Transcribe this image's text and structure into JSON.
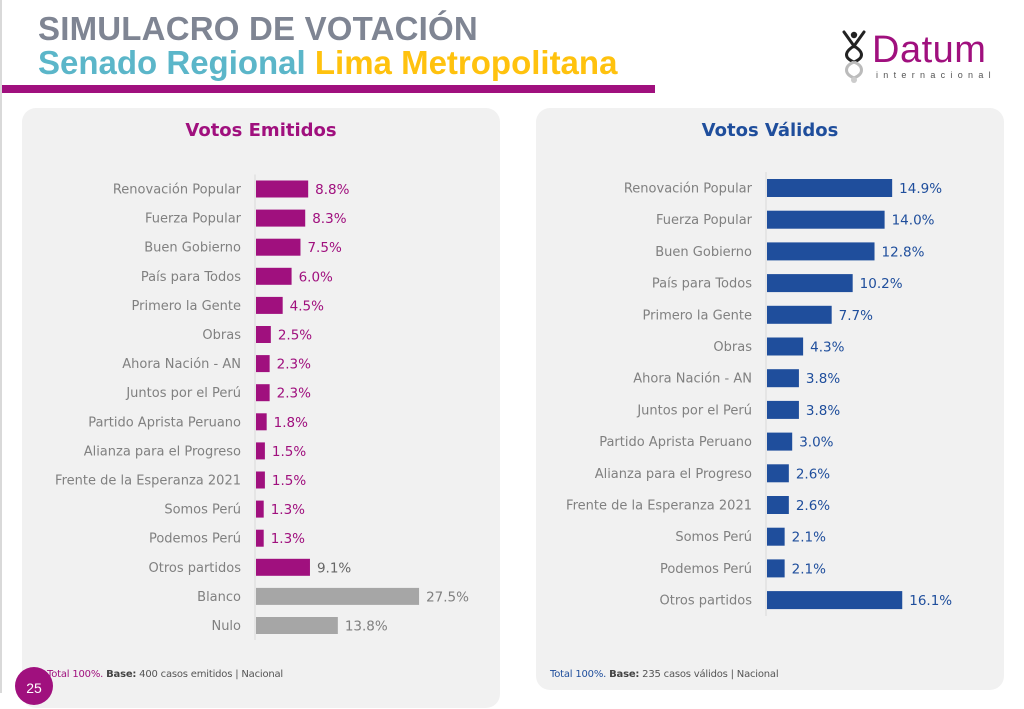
{
  "header": {
    "title_line1": "SIMULACRO DE VOTACIÓN",
    "title_line2_part1": "Senado Regional",
    "title_line2_part2": "Lima Metropolitana",
    "colors": {
      "title1": "#7f8593",
      "part1": "#5bb6c9",
      "part2": "#ffc20e",
      "rule": "#a0107e"
    }
  },
  "logo": {
    "name": "Datum",
    "subtitle": "internacional",
    "icon": "datum-figure-icon"
  },
  "page_number": "25",
  "chart_data": [
    {
      "type": "bar",
      "orientation": "horizontal",
      "title": "Votos Emitidos",
      "xlabel": "",
      "ylabel": "",
      "grid": false,
      "xlim": [
        0,
        30
      ],
      "categories": [
        "Renovación Popular",
        "Fuerza Popular",
        "Buen Gobierno",
        "País para Todos",
        "Primero la Gente",
        "Obras",
        "Ahora Nación - AN",
        "Juntos por el Perú",
        "Partido Aprista Peruano",
        "Alianza para el Progreso",
        "Frente de la Esperanza 2021",
        "Somos Perú",
        "Podemos Perú",
        "Otros partidos",
        "Blanco",
        "Nulo"
      ],
      "values": [
        8.8,
        8.3,
        7.5,
        6.0,
        4.5,
        2.5,
        2.3,
        2.3,
        1.8,
        1.5,
        1.5,
        1.3,
        1.3,
        9.1,
        27.5,
        13.8
      ],
      "value_labels": [
        "8.8%",
        "8.3%",
        "7.5%",
        "6.0%",
        "4.5%",
        "2.5%",
        "2.3%",
        "2.3%",
        "1.8%",
        "1.5%",
        "1.5%",
        "1.3%",
        "1.3%",
        "9.1%",
        "27.5%",
        "13.8%"
      ],
      "bar_colors": [
        "#a0107e",
        "#a0107e",
        "#a0107e",
        "#a0107e",
        "#a0107e",
        "#a0107e",
        "#a0107e",
        "#a0107e",
        "#a0107e",
        "#a0107e",
        "#a0107e",
        "#a0107e",
        "#a0107e",
        "#a0107e",
        "#a6a6a6",
        "#a6a6a6"
      ],
      "label_colors": [
        "#a0107e",
        "#a0107e",
        "#a0107e",
        "#a0107e",
        "#a0107e",
        "#a0107e",
        "#a0107e",
        "#a0107e",
        "#a0107e",
        "#a0107e",
        "#a0107e",
        "#a0107e",
        "#a0107e",
        "#666666",
        "#808080",
        "#808080"
      ],
      "footer": {
        "total": "Total 100%.",
        "base_label": "Base:",
        "base_text": " 400 casos emitidos | Nacional"
      }
    },
    {
      "type": "bar",
      "orientation": "horizontal",
      "title": "Votos Válidos",
      "xlabel": "",
      "ylabel": "",
      "grid": false,
      "xlim": [
        0,
        20
      ],
      "categories": [
        "Renovación Popular",
        "Fuerza Popular",
        "Buen Gobierno",
        "País para Todos",
        "Primero la Gente",
        "Obras",
        "Ahora Nación - AN",
        "Juntos por el Perú",
        "Partido Aprista Peruano",
        "Alianza para el Progreso",
        "Frente de la Esperanza 2021",
        "Somos Perú",
        "Podemos Perú",
        "Otros partidos"
      ],
      "values": [
        14.9,
        14.0,
        12.8,
        10.2,
        7.7,
        4.3,
        3.8,
        3.8,
        3.0,
        2.6,
        2.6,
        2.1,
        2.1,
        16.1
      ],
      "value_labels": [
        "14.9%",
        "14.0%",
        "12.8%",
        "10.2%",
        "7.7%",
        "4.3%",
        "3.8%",
        "3.8%",
        "3.0%",
        "2.6%",
        "2.6%",
        "2.1%",
        "2.1%",
        "16.1%"
      ],
      "bar_color": "#1f4e9c",
      "label_color": "#1f4e9c",
      "footer": {
        "total": "Total 100%.",
        "base_label": "Base:",
        "base_text": " 235 casos válidos | Nacional"
      }
    }
  ]
}
